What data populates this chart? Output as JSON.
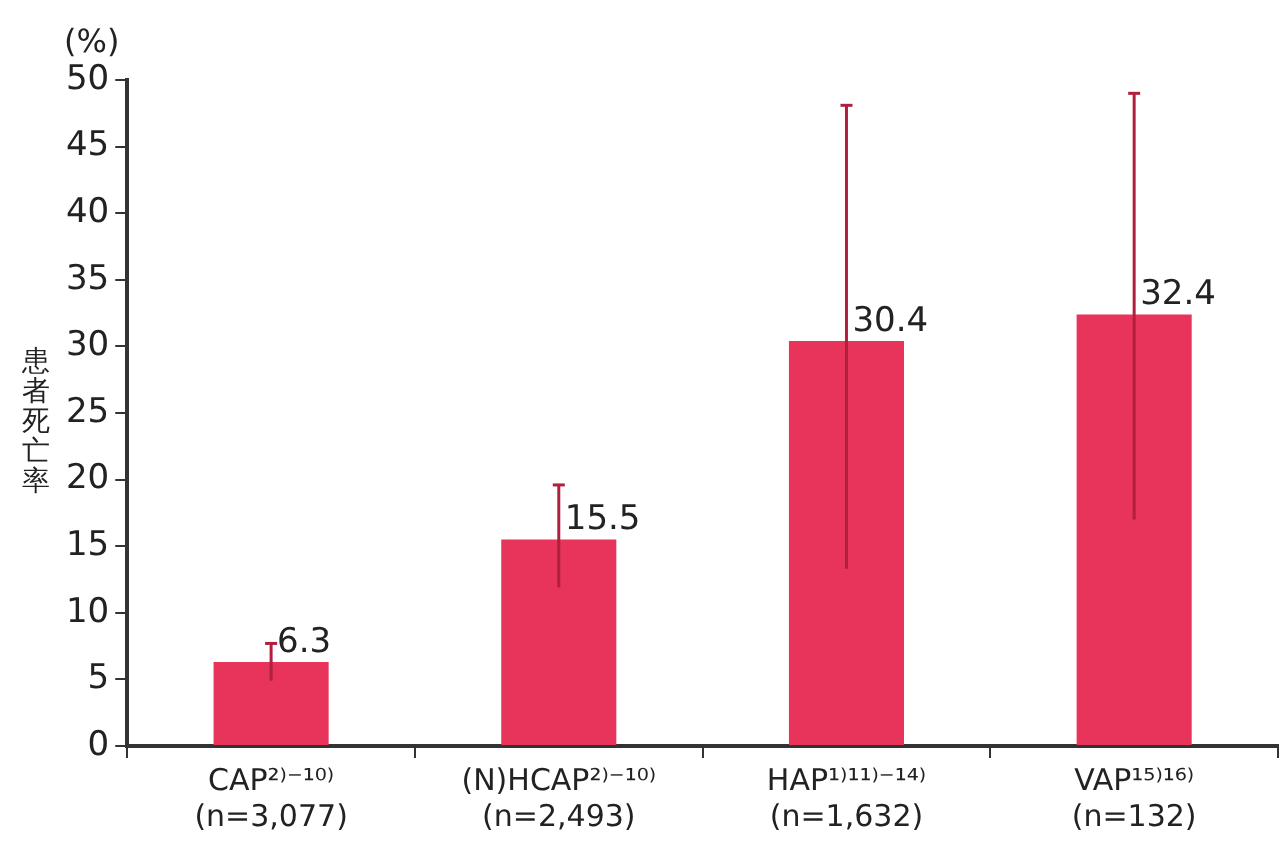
{
  "chart_data": {
    "type": "bar",
    "ylabel": "患者死亡率",
    "annotations": [
      "(%)"
    ],
    "categories": [
      [
        "CAP²⁾⁻¹⁰⁾",
        "(n=3,077)"
      ],
      [
        "(N)HCAP²⁾⁻¹⁰⁾",
        "(n=2,493)"
      ],
      [
        "HAP¹⁾¹¹⁾⁻¹⁴⁾",
        "(n=1,632)"
      ],
      [
        "VAP¹⁵⁾¹⁶⁾",
        "(n=132)"
      ]
    ],
    "values": [
      6.3,
      15.5,
      30.4,
      32.4
    ],
    "color": "#e8335a",
    "errors": [
      [
        4.9,
        7.7
      ],
      [
        11.9,
        19.6
      ],
      [
        13.3,
        48.1
      ],
      [
        17.0,
        49.0
      ]
    ],
    "data_labels": true,
    "ylim": [
      0,
      50
    ],
    "yticks": [
      0,
      5,
      10,
      15,
      20,
      25,
      30,
      35,
      40,
      45,
      50
    ],
    "grid": false,
    "legend": false
  }
}
